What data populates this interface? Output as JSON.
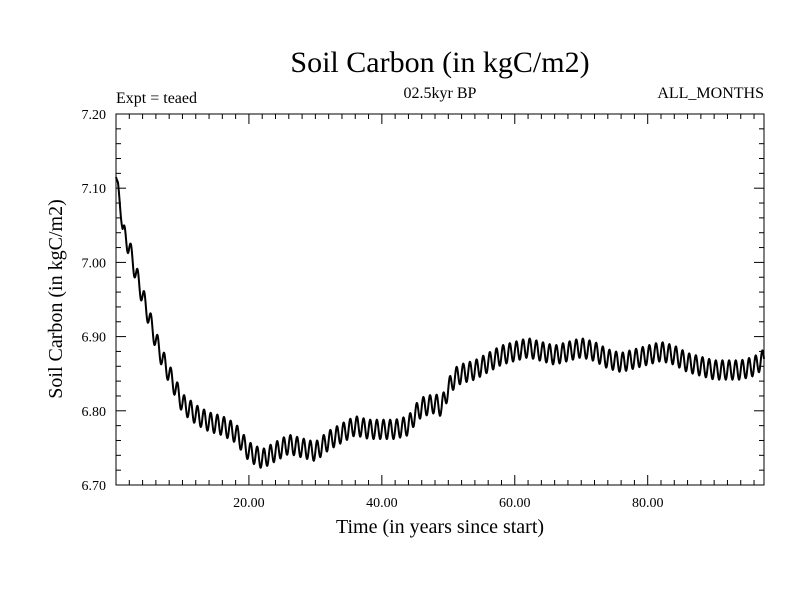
{
  "colors": {
    "background": "#ffffff",
    "line": "#000000",
    "axis": "#000000"
  },
  "chart_data": {
    "type": "line",
    "title": "Soil Carbon (in kgC/m2)",
    "subtitle": "02.5kyr BP",
    "left_annotation": "Expt = teaed",
    "right_annotation": "ALL_MONTHS",
    "xlabel": "Time (in years since start)",
    "ylabel": "Soil Carbon (in kgC/m2)",
    "xlim": [
      0.0,
      97.5
    ],
    "ylim": [
      6.7,
      7.2
    ],
    "x_ticks": [
      20,
      40,
      60,
      80
    ],
    "x_tick_labels": [
      "20.00",
      "40.00",
      "60.00",
      "80.00"
    ],
    "y_ticks": [
      6.7,
      6.8,
      6.9,
      7.0,
      7.1,
      7.2
    ],
    "y_tick_labels": [
      "6.70",
      "6.80",
      "6.90",
      "7.00",
      "7.10",
      "7.20"
    ],
    "grid": false,
    "oscillation": {
      "period_years": 1.0,
      "amplitude": 0.013
    },
    "series": [
      {
        "name": "Soil Carbon",
        "x": [
          0,
          0.3,
          1,
          2,
          3,
          4,
          5,
          6,
          7,
          8,
          9,
          10,
          12,
          14,
          16,
          18,
          20,
          22,
          24,
          26,
          28,
          30,
          32,
          34,
          36,
          38,
          40,
          42,
          44,
          45,
          46,
          48,
          49,
          50,
          51,
          52,
          54,
          56,
          58,
          60,
          62,
          64,
          66,
          68,
          70,
          72,
          74,
          76,
          78,
          80,
          82,
          84,
          86,
          88,
          90,
          92,
          94,
          96,
          97.5
        ],
        "y": [
          7.115,
          7.105,
          7.045,
          7.02,
          6.985,
          6.955,
          6.925,
          6.895,
          6.87,
          6.85,
          6.83,
          6.81,
          6.795,
          6.785,
          6.78,
          6.77,
          6.745,
          6.735,
          6.745,
          6.755,
          6.75,
          6.745,
          6.76,
          6.77,
          6.78,
          6.775,
          6.775,
          6.775,
          6.78,
          6.795,
          6.805,
          6.81,
          6.805,
          6.83,
          6.845,
          6.85,
          6.855,
          6.865,
          6.875,
          6.88,
          6.885,
          6.88,
          6.875,
          6.88,
          6.885,
          6.88,
          6.87,
          6.865,
          6.87,
          6.875,
          6.88,
          6.875,
          6.865,
          6.86,
          6.855,
          6.855,
          6.855,
          6.86,
          6.87
        ]
      }
    ]
  }
}
